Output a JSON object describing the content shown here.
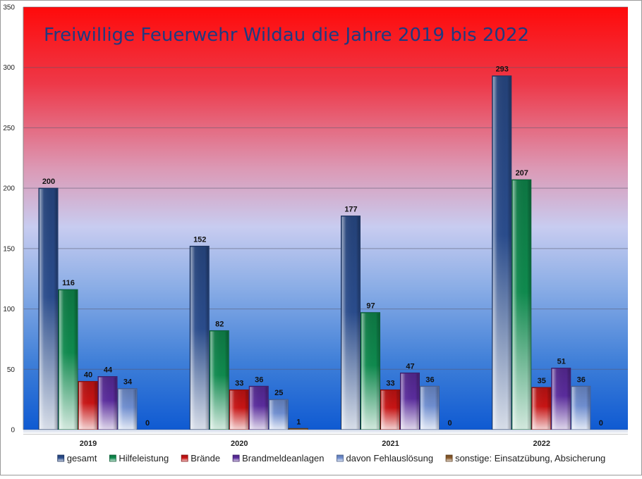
{
  "chart_data": {
    "type": "bar",
    "title": "Freiwillige Feuerwehr Wildau die Jahre 2019 bis 2022",
    "categories": [
      "2019",
      "2020",
      "2021",
      "2022"
    ],
    "series": [
      {
        "name": "gesamt",
        "values": [
          200,
          152,
          177,
          293
        ],
        "color": "#2a4c8c"
      },
      {
        "name": "Hilfeleistung",
        "values": [
          116,
          82,
          97,
          207
        ],
        "color": "#0f8a4e"
      },
      {
        "name": "Brände",
        "values": [
          40,
          33,
          33,
          35
        ],
        "color": "#c81414"
      },
      {
        "name": "Brandmeldeanlagen",
        "values": [
          44,
          36,
          47,
          51
        ],
        "color": "#5a2c9c"
      },
      {
        "name": "davon Fehlauslösung",
        "values": [
          34,
          25,
          36,
          36
        ],
        "color": "#6f8ed0"
      },
      {
        "name": "sonstige: Einsatzübung, Absicherung",
        "values": [
          0,
          1,
          0,
          0
        ],
        "color": "#8a5a2a"
      }
    ],
    "ylim": [
      0,
      350
    ],
    "yticks": [
      0,
      50,
      100,
      150,
      200,
      250,
      300,
      350
    ],
    "grid": true,
    "legend_position": "bottom",
    "data_labels": true,
    "xlabel": "",
    "ylabel": ""
  }
}
